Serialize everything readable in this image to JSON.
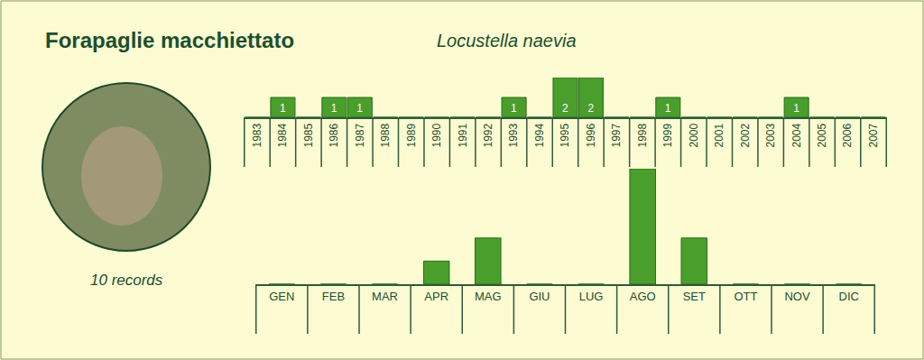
{
  "chart_data": [
    {
      "type": "bar",
      "title": "Forapaglie macchiettato",
      "subtitle": "Locustella naevia",
      "annotations": [
        "10 records"
      ],
      "categories": [
        "1983",
        "1984",
        "1985",
        "1986",
        "1987",
        "1988",
        "1989",
        "1990",
        "1991",
        "1992",
        "1993",
        "1994",
        "1995",
        "1996",
        "1997",
        "1998",
        "1999",
        "2000",
        "2001",
        "2002",
        "2003",
        "2004",
        "2005",
        "2006",
        "2007"
      ],
      "values": [
        0,
        1,
        0,
        1,
        1,
        0,
        0,
        0,
        0,
        0,
        1,
        0,
        2,
        2,
        0,
        0,
        1,
        0,
        0,
        0,
        0,
        1,
        0,
        0,
        0
      ],
      "ylim": [
        0,
        2
      ],
      "data_labels": true,
      "tick_labels": "x",
      "color": "#4a9e2c"
    },
    {
      "type": "bar",
      "categories": [
        "GEN",
        "FEB",
        "MAR",
        "APR",
        "MAG",
        "GIU",
        "LUG",
        "AGO",
        "SET",
        "OTT",
        "NOV",
        "DIC"
      ],
      "values": [
        0,
        0,
        0,
        1,
        2,
        0,
        0,
        5,
        2,
        0,
        0,
        0
      ],
      "ylim": [
        0,
        5
      ],
      "tick_labels": "x",
      "color": "#4a9e2c"
    }
  ]
}
